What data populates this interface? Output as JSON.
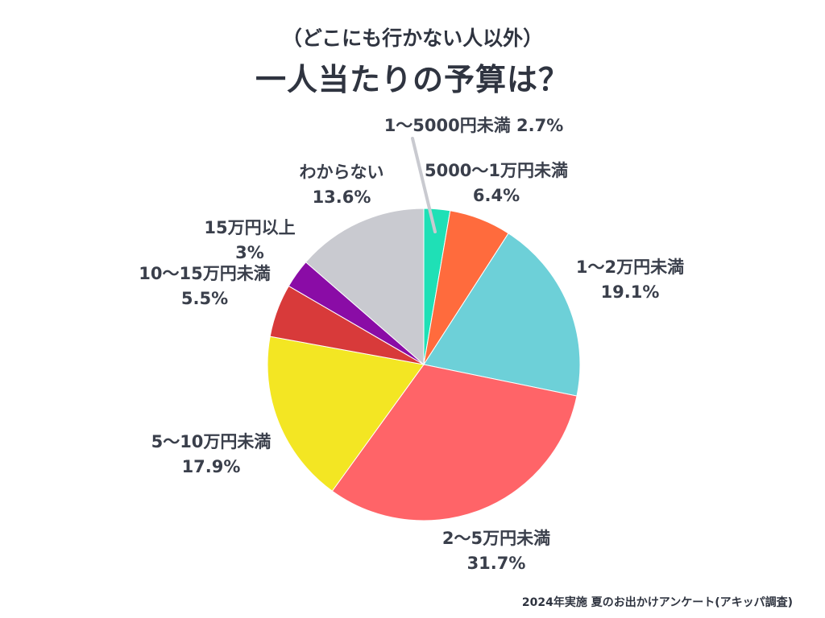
{
  "header": {
    "subtitle": "（どこにも行かない人以外）",
    "title": "一人当たりの予算は？"
  },
  "footer": {
    "source": "2024年実施 夏のお出かけアンケート(アキッパ調査)"
  },
  "chart_data": {
    "type": "pie",
    "title": "一人当たりの予算は？",
    "subtitle": "（どこにも行かない人以外）",
    "start": "12 o'clock",
    "direction": "clockwise",
    "legend": "none (direct labels)",
    "slices": [
      {
        "category": "1〜5000円未満",
        "value": 2.7,
        "label": "2.7%",
        "color": "#1fe0b6"
      },
      {
        "category": "5000〜1万円未満",
        "value": 6.4,
        "label": "6.4%",
        "color": "#ff6b3d"
      },
      {
        "category": "1〜2万円未満",
        "value": 19.1,
        "label": "19.1%",
        "color": "#6dd0d8"
      },
      {
        "category": "2〜5万円未満",
        "value": 31.7,
        "label": "31.7%",
        "color": "#ff6468"
      },
      {
        "category": "5〜10万円未満",
        "value": 17.9,
        "label": "17.9%",
        "color": "#f3e623"
      },
      {
        "category": "10〜15万円未満",
        "value": 5.5,
        "label": "5.5%",
        "color": "#d83a3a"
      },
      {
        "category": "15万円以上",
        "value": 3,
        "label": "3%",
        "color": "#8a0ca6"
      },
      {
        "category": "わからない",
        "value": 13.6,
        "label": "13.6%",
        "color": "#c9cad0"
      }
    ]
  }
}
